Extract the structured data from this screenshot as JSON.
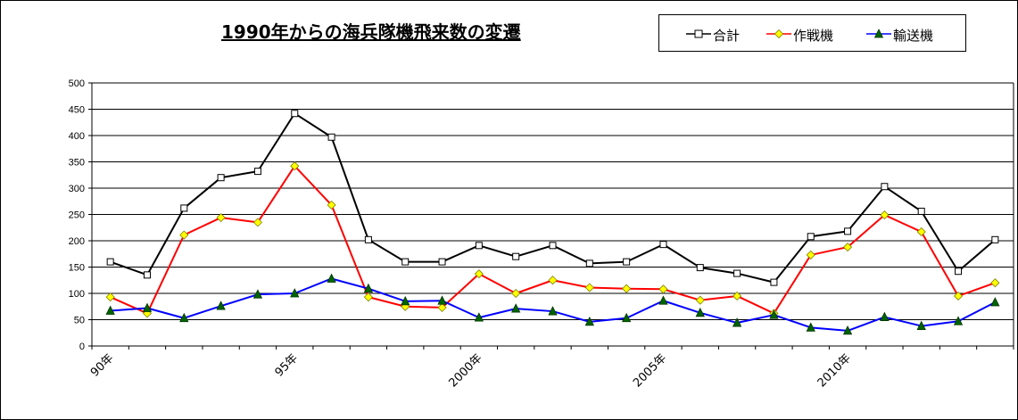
{
  "chart_data": {
    "type": "line",
    "title": "1990年からの海兵隊機飛来数の変遷",
    "xlabel": "",
    "ylabel": "",
    "ylim": [
      0,
      500
    ],
    "ytick_step": 50,
    "grid": true,
    "legend_position": "top-right",
    "x": [
      1990,
      1991,
      1992,
      1993,
      1994,
      1995,
      1996,
      1997,
      1998,
      1999,
      2000,
      2001,
      2002,
      2003,
      2004,
      2005,
      2006,
      2007,
      2008,
      2009,
      2010,
      2011,
      2012,
      2013,
      2014
    ],
    "x_tick_labels": [
      {
        "x": 1990,
        "label": "90年"
      },
      {
        "x": 1995,
        "label": "95年"
      },
      {
        "x": 2000,
        "label": "2000年"
      },
      {
        "x": 2005,
        "label": "2005年"
      },
      {
        "x": 2010,
        "label": "2010年"
      }
    ],
    "series": [
      {
        "name": "合計",
        "color": "#000000",
        "marker": "square",
        "marker_fill": "#ffffff",
        "values": [
          160,
          135,
          262,
          320,
          332,
          442,
          397,
          202,
          160,
          160,
          191,
          170,
          191,
          157,
          160,
          193,
          149,
          138,
          121,
          208,
          218,
          303,
          256,
          142,
          202
        ]
      },
      {
        "name": "作戦機",
        "color": "#ff0000",
        "marker": "diamond",
        "marker_fill": "#ffff00",
        "values": [
          93,
          62,
          211,
          244,
          235,
          342,
          268,
          93,
          75,
          73,
          137,
          100,
          125,
          111,
          109,
          108,
          87,
          95,
          62,
          173,
          188,
          249,
          217,
          95,
          120
        ]
      },
      {
        "name": "輸送機",
        "color": "#0000ff",
        "marker": "triangle",
        "marker_fill": "#006400",
        "values": [
          67,
          72,
          53,
          76,
          98,
          100,
          128,
          109,
          85,
          86,
          54,
          71,
          66,
          46,
          53,
          86,
          63,
          44,
          59,
          35,
          29,
          55,
          38,
          47,
          83
        ]
      }
    ]
  }
}
